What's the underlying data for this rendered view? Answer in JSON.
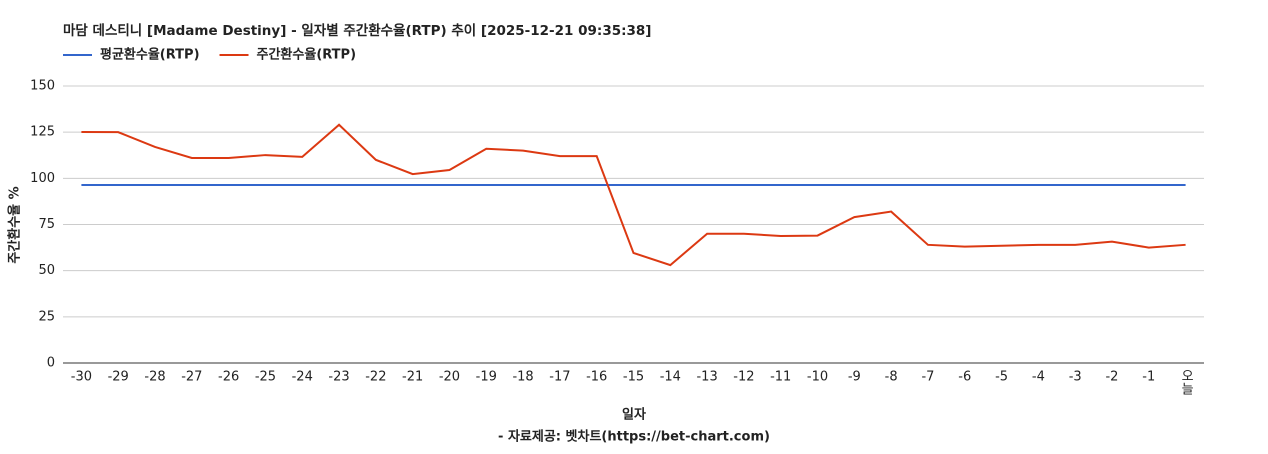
{
  "chart_data": {
    "type": "line",
    "title": "마담 데스티니 [Madame Destiny] - 일자별 주간환수율(RTP) 추이 [2025-12-21 09:35:38]",
    "x_label": "일자",
    "y_label": "주간환수율 %",
    "footer": "- 자료제공: 벳차트(https://bet-chart.com)",
    "categories": [
      "-30",
      "-29",
      "-28",
      "-27",
      "-26",
      "-25",
      "-24",
      "-23",
      "-22",
      "-21",
      "-20",
      "-19",
      "-18",
      "-17",
      "-16",
      "-15",
      "-14",
      "-13",
      "-12",
      "-11",
      "-10",
      "-9",
      "-8",
      "-7",
      "-6",
      "-5",
      "-4",
      "-3",
      "-2",
      "-1",
      "오늘"
    ],
    "series": [
      {
        "name": "평균환수율(RTP)",
        "color": "#3366cc",
        "values": [
          96.4,
          96.4,
          96.4,
          96.4,
          96.4,
          96.4,
          96.4,
          96.4,
          96.4,
          96.4,
          96.4,
          96.4,
          96.4,
          96.4,
          96.4,
          96.4,
          96.4,
          96.4,
          96.4,
          96.4,
          96.4,
          96.4,
          96.4,
          96.4,
          96.4,
          96.4,
          96.4,
          96.4,
          96.4,
          96.4,
          96.4
        ]
      },
      {
        "name": "주간환수율(RTP)",
        "color": "#dc3912",
        "values": [
          125.1,
          125,
          117,
          111,
          111,
          112.6,
          111.6,
          129,
          110,
          102.3,
          104.5,
          116,
          115,
          112,
          112,
          59.6,
          53,
          70,
          70,
          68.8,
          69,
          79,
          82,
          64,
          63,
          63.5,
          64,
          64,
          65.7,
          62.5,
          64
        ]
      }
    ],
    "ylim": [
      0,
      150
    ],
    "yticks": [
      0,
      25,
      50,
      75,
      100,
      125,
      150
    ],
    "grid": true
  }
}
